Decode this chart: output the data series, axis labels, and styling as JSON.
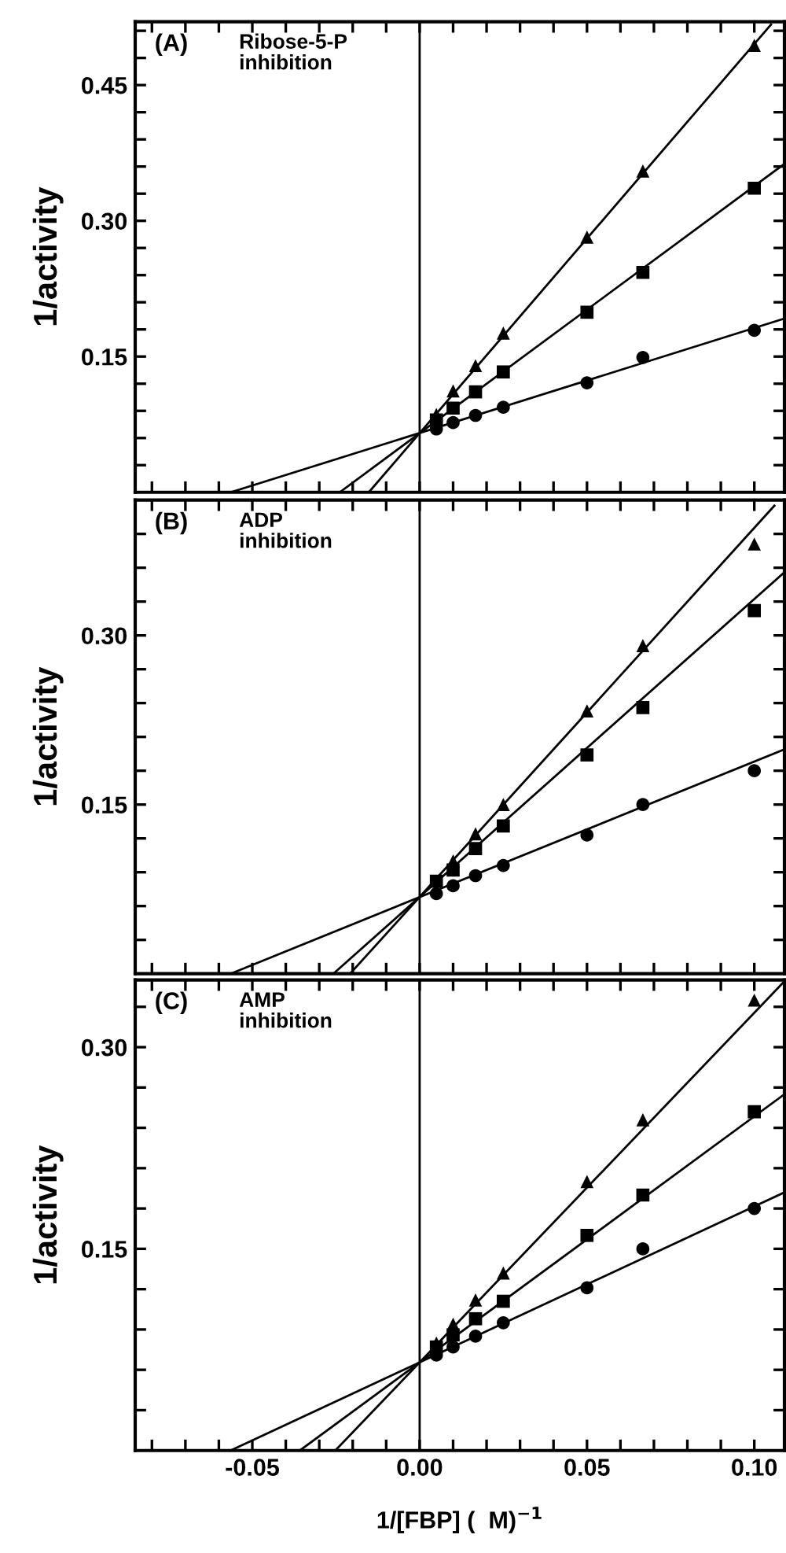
{
  "chart_data": [
    {
      "type": "scatter",
      "title": "(A)",
      "subtitle": "Ribose-5-P\ninhibition",
      "ylabel": "1/activity",
      "xlim": [
        -0.085,
        0.109
      ],
      "ylim": [
        0,
        0.52
      ],
      "tick_labels": "y",
      "marker": "circle",
      "xticks": [
        {
          "value": -0.08,
          "label": null
        },
        {
          "value": -0.07,
          "label": null
        },
        {
          "value": -0.06,
          "label": null
        },
        {
          "value": -0.05,
          "label": null
        },
        {
          "value": -0.04,
          "label": null
        },
        {
          "value": -0.03,
          "label": null
        },
        {
          "value": -0.02,
          "label": null
        },
        {
          "value": -0.01,
          "label": null
        },
        {
          "value": 0,
          "label": null
        },
        {
          "value": 0.01,
          "label": null
        },
        {
          "value": 0.02,
          "label": null
        },
        {
          "value": 0.03,
          "label": null
        },
        {
          "value": 0.04,
          "label": null
        },
        {
          "value": 0.05,
          "label": null
        },
        {
          "value": 0.06,
          "label": null
        },
        {
          "value": 0.07,
          "label": null
        },
        {
          "value": 0.08,
          "label": null
        },
        {
          "value": 0.09,
          "label": null
        },
        {
          "value": 0.1,
          "label": null
        }
      ],
      "yticks": [
        {
          "value": 0.03,
          "label": null
        },
        {
          "value": 0.06,
          "label": null
        },
        {
          "value": 0.09,
          "label": null
        },
        {
          "value": 0.12,
          "label": null
        },
        {
          "value": 0.15,
          "label": "0.15"
        },
        {
          "value": 0.18,
          "label": null
        },
        {
          "value": 0.21,
          "label": null
        },
        {
          "value": 0.24,
          "label": null
        },
        {
          "value": 0.27,
          "label": null
        },
        {
          "value": 0.3,
          "label": "0.30"
        },
        {
          "value": 0.33,
          "label": null
        },
        {
          "value": 0.36,
          "label": null
        },
        {
          "value": 0.39,
          "label": null
        },
        {
          "value": 0.42,
          "label": null
        },
        {
          "value": 0.45,
          "label": "0.45"
        },
        {
          "value": 0.48,
          "label": null
        },
        {
          "value": 0.51,
          "label": null
        }
      ],
      "ref_lines": [
        {
          "axis": "x",
          "value": 0,
          "color": "#000000"
        }
      ],
      "x": [
        0.005,
        0.01,
        0.0167,
        0.025,
        0.05,
        0.0667,
        0.1
      ],
      "series": [
        {
          "type": "scatter",
          "marker": "triangle",
          "color": "#000000",
          "values": [
            0.086,
            0.112,
            0.14,
            0.176,
            0.282,
            0.355,
            0.494
          ]
        },
        {
          "type": "scatter",
          "marker": "square",
          "color": "#000000",
          "values": [
            0.08,
            0.093,
            0.111,
            0.133,
            0.199,
            0.243,
            0.336
          ]
        },
        {
          "color": "#000000",
          "values": [
            0.07,
            0.077,
            0.085,
            0.094,
            0.121,
            0.149,
            0.179
          ]
        },
        {
          "type": "line",
          "marker": "none",
          "color": "#000000",
          "x": [
            -0.0152,
            0.105
          ],
          "values": [
            0,
            0.517
          ]
        },
        {
          "type": "line",
          "marker": "none",
          "color": "#000000",
          "x": [
            -0.0239,
            0.109
          ],
          "values": [
            0,
            0.363
          ]
        },
        {
          "type": "line",
          "marker": "none",
          "color": "#000000",
          "x": [
            -0.0565,
            0.109
          ],
          "values": [
            0,
            0.192
          ]
        }
      ]
    },
    {
      "type": "scatter",
      "title": "(B)",
      "subtitle": "ADP\ninhibition",
      "ylabel": "1/activity",
      "xlim": [
        -0.085,
        0.109
      ],
      "ylim": [
        0,
        0.42
      ],
      "tick_labels": "y",
      "marker": "circle",
      "xticks": [
        {
          "value": -0.08,
          "label": null
        },
        {
          "value": -0.07,
          "label": null
        },
        {
          "value": -0.06,
          "label": null
        },
        {
          "value": -0.05,
          "label": null
        },
        {
          "value": -0.04,
          "label": null
        },
        {
          "value": -0.03,
          "label": null
        },
        {
          "value": -0.02,
          "label": null
        },
        {
          "value": -0.01,
          "label": null
        },
        {
          "value": 0,
          "label": null
        },
        {
          "value": 0.01,
          "label": null
        },
        {
          "value": 0.02,
          "label": null
        },
        {
          "value": 0.03,
          "label": null
        },
        {
          "value": 0.04,
          "label": null
        },
        {
          "value": 0.05,
          "label": null
        },
        {
          "value": 0.06,
          "label": null
        },
        {
          "value": 0.07,
          "label": null
        },
        {
          "value": 0.08,
          "label": null
        },
        {
          "value": 0.09,
          "label": null
        },
        {
          "value": 0.1,
          "label": null
        }
      ],
      "yticks": [
        {
          "value": 0.03,
          "label": null
        },
        {
          "value": 0.06,
          "label": null
        },
        {
          "value": 0.09,
          "label": null
        },
        {
          "value": 0.12,
          "label": null
        },
        {
          "value": 0.15,
          "label": "0.15"
        },
        {
          "value": 0.18,
          "label": null
        },
        {
          "value": 0.21,
          "label": null
        },
        {
          "value": 0.24,
          "label": null
        },
        {
          "value": 0.27,
          "label": null
        },
        {
          "value": 0.3,
          "label": "0.30"
        },
        {
          "value": 0.33,
          "label": null
        },
        {
          "value": 0.36,
          "label": null
        },
        {
          "value": 0.39,
          "label": null
        }
      ],
      "ref_lines": [
        {
          "axis": "x",
          "value": 0,
          "color": "#000000"
        }
      ],
      "x": [
        0.005,
        0.01,
        0.0167,
        0.025,
        0.05,
        0.0667,
        0.1
      ],
      "series": [
        {
          "type": "scatter",
          "marker": "triangle",
          "color": "#000000",
          "values": [
            null,
            0.1,
            0.124,
            0.15,
            0.233,
            0.291,
            0.381
          ]
        },
        {
          "type": "scatter",
          "marker": "square",
          "color": "#000000",
          "values": [
            0.082,
            0.092,
            0.111,
            0.131,
            0.194,
            0.236,
            0.322
          ]
        },
        {
          "color": "#000000",
          "values": [
            0.071,
            0.078,
            0.087,
            0.096,
            0.123,
            0.15,
            0.18
          ]
        },
        {
          "type": "line",
          "marker": "none",
          "color": "#000000",
          "x": [
            -0.0208,
            0.106
          ],
          "values": [
            0,
            0.415
          ]
        },
        {
          "type": "line",
          "marker": "none",
          "color": "#000000",
          "x": [
            -0.0258,
            0.109
          ],
          "values": [
            0,
            0.356
          ]
        },
        {
          "type": "line",
          "marker": "none",
          "color": "#000000",
          "x": [
            -0.0565,
            0.109
          ],
          "values": [
            0,
            0.199
          ]
        }
      ]
    },
    {
      "type": "scatter",
      "title": "(C)",
      "subtitle": "AMP\ninhibition",
      "ylabel": "1/activity",
      "xlabel": "1/[FBP] (  M)$^{−1}$",
      "xlim": [
        -0.085,
        0.109
      ],
      "ylim": [
        0,
        0.35
      ],
      "marker": "circle",
      "xticks": [
        {
          "value": -0.08,
          "label": null
        },
        {
          "value": -0.07,
          "label": null
        },
        {
          "value": -0.06,
          "label": null
        },
        {
          "value": -0.05,
          "label": "-0.05"
        },
        {
          "value": -0.04,
          "label": null
        },
        {
          "value": -0.03,
          "label": null
        },
        {
          "value": -0.02,
          "label": null
        },
        {
          "value": -0.01,
          "label": null
        },
        {
          "value": 0,
          "label": "0.00"
        },
        {
          "value": 0.01,
          "label": null
        },
        {
          "value": 0.02,
          "label": null
        },
        {
          "value": 0.03,
          "label": null
        },
        {
          "value": 0.04,
          "label": null
        },
        {
          "value": 0.05,
          "label": "0.05"
        },
        {
          "value": 0.06,
          "label": null
        },
        {
          "value": 0.07,
          "label": null
        },
        {
          "value": 0.08,
          "label": null
        },
        {
          "value": 0.09,
          "label": null
        },
        {
          "value": 0.1,
          "label": "0.10"
        }
      ],
      "yticks": [
        {
          "value": 0.03,
          "label": null
        },
        {
          "value": 0.06,
          "label": null
        },
        {
          "value": 0.09,
          "label": null
        },
        {
          "value": 0.12,
          "label": null
        },
        {
          "value": 0.15,
          "label": "0.15"
        },
        {
          "value": 0.18,
          "label": null
        },
        {
          "value": 0.21,
          "label": null
        },
        {
          "value": 0.24,
          "label": null
        },
        {
          "value": 0.27,
          "label": null
        },
        {
          "value": 0.3,
          "label": "0.30"
        },
        {
          "value": 0.33,
          "label": null
        }
      ],
      "ref_lines": [
        {
          "axis": "x",
          "value": 0,
          "color": "#000000"
        }
      ],
      "x": [
        0.005,
        0.01,
        0.0167,
        0.025,
        0.05,
        0.0667,
        0.1
      ],
      "series": [
        {
          "type": "scatter",
          "marker": "triangle",
          "color": "#000000",
          "values": [
            0.08,
            0.094,
            0.112,
            0.132,
            0.2,
            0.246,
            0.335
          ]
        },
        {
          "type": "scatter",
          "marker": "square",
          "color": "#000000",
          "values": [
            0.077,
            0.086,
            0.098,
            0.111,
            0.16,
            0.19,
            0.252
          ]
        },
        {
          "color": "#000000",
          "values": [
            0.071,
            0.077,
            0.085,
            0.095,
            0.121,
            0.15,
            0.18
          ]
        },
        {
          "type": "line",
          "marker": "none",
          "color": "#000000",
          "x": [
            -0.0252,
            0.109
          ],
          "values": [
            0,
            0.349
          ]
        },
        {
          "type": "line",
          "marker": "none",
          "color": "#000000",
          "x": [
            -0.0358,
            0.109
          ],
          "values": [
            0,
            0.265
          ]
        },
        {
          "type": "line",
          "marker": "none",
          "color": "#000000",
          "x": [
            -0.0565,
            0.109
          ],
          "values": [
            0,
            0.192
          ]
        }
      ]
    }
  ]
}
